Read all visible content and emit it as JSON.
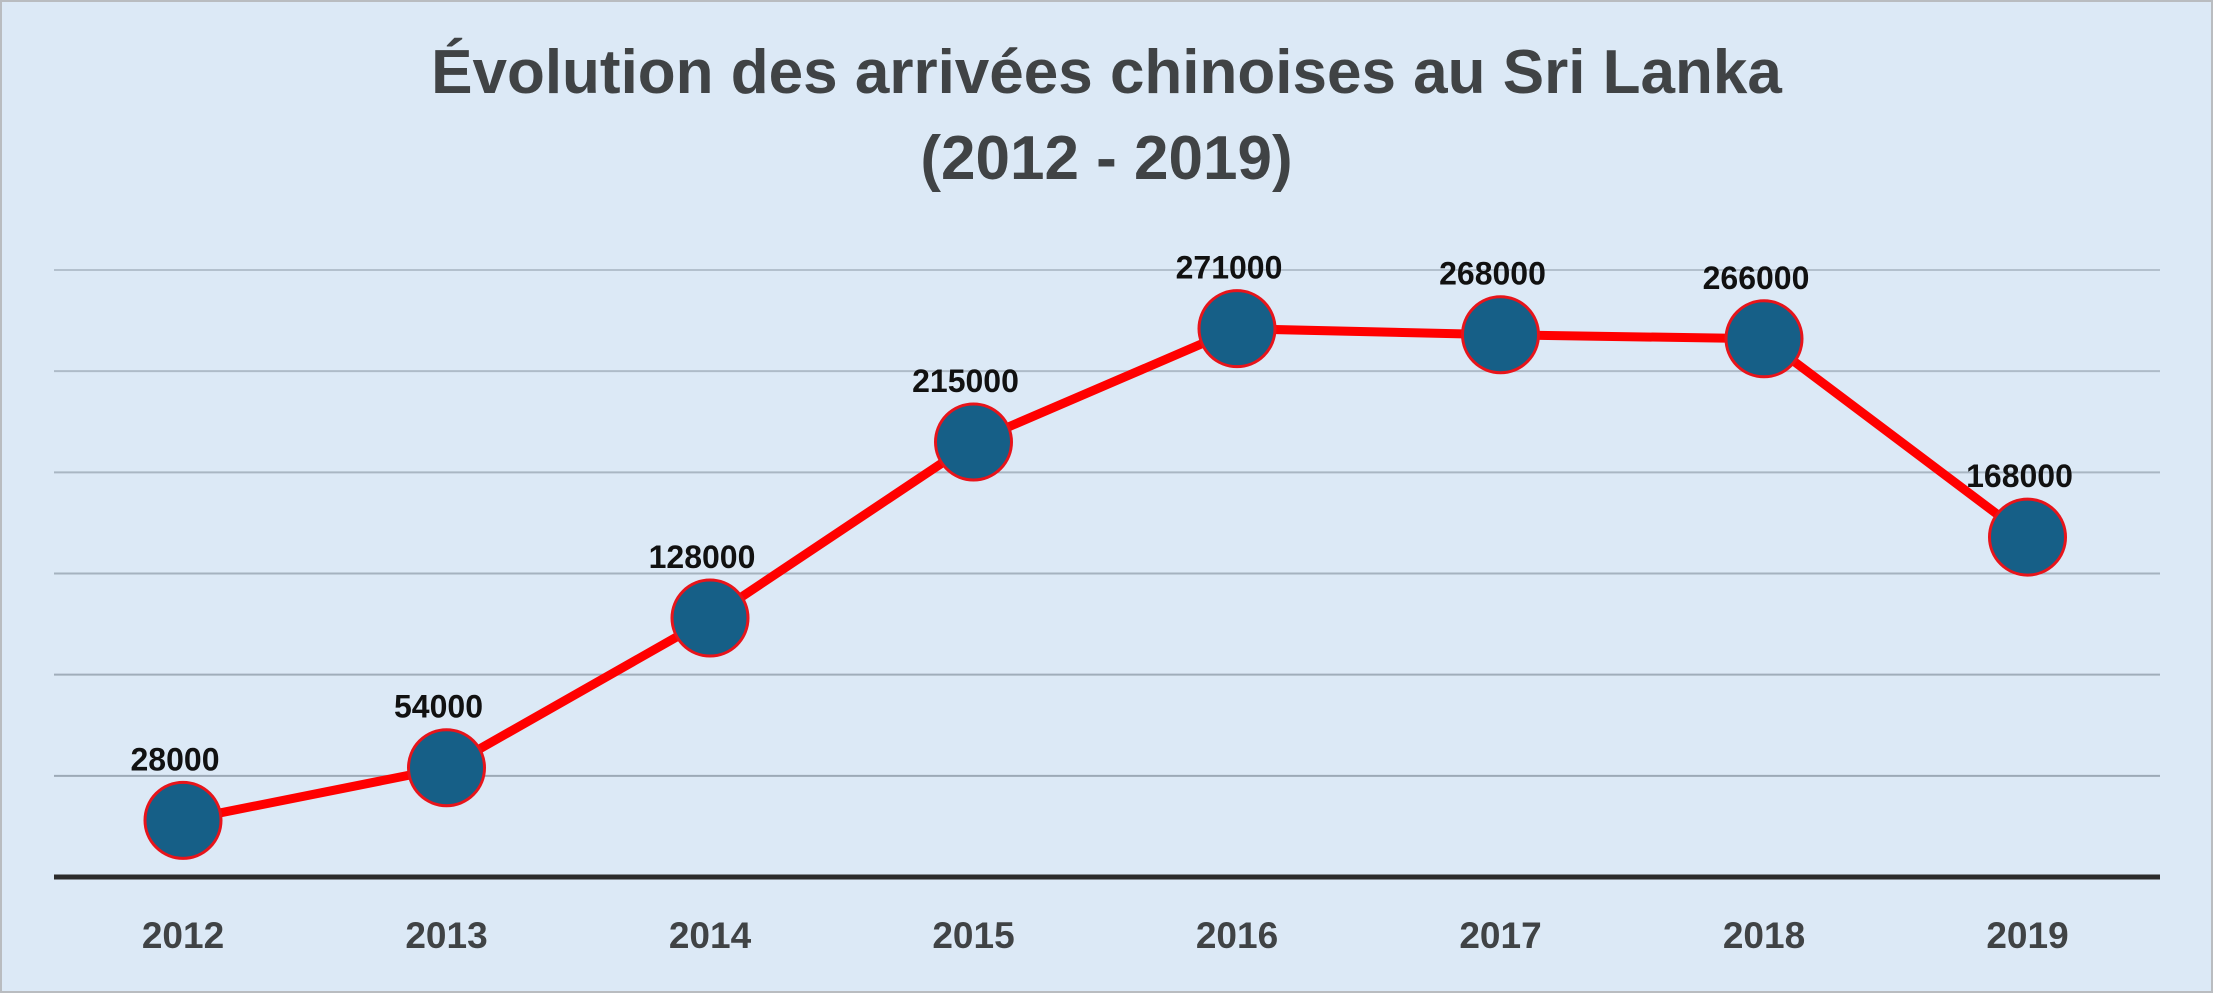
{
  "chart_data": {
    "type": "line",
    "title": "Évolution des arrivées chinoises au Sri Lanka",
    "subtitle": "(2012 - 2019)",
    "categories": [
      "2012",
      "2013",
      "2014",
      "2015",
      "2016",
      "2017",
      "2018",
      "2019"
    ],
    "values": [
      28000,
      54000,
      128000,
      215000,
      271000,
      268000,
      266000,
      168000
    ],
    "data_labels": [
      "28000",
      "54000",
      "128000",
      "215000",
      "271000",
      "268000",
      "266000",
      "168000"
    ],
    "ylim": [
      0,
      300000
    ],
    "y_gridlines": [
      50000,
      100000,
      150000,
      200000,
      250000,
      300000
    ],
    "grid": true,
    "legend": "none",
    "colors": {
      "line": "#ff0000",
      "marker_fill": "#165f87",
      "marker_edge": "#e8141a",
      "gridline": "#9aa7b4",
      "axis": "#2b2b2b",
      "background": "#dce9f6"
    }
  }
}
